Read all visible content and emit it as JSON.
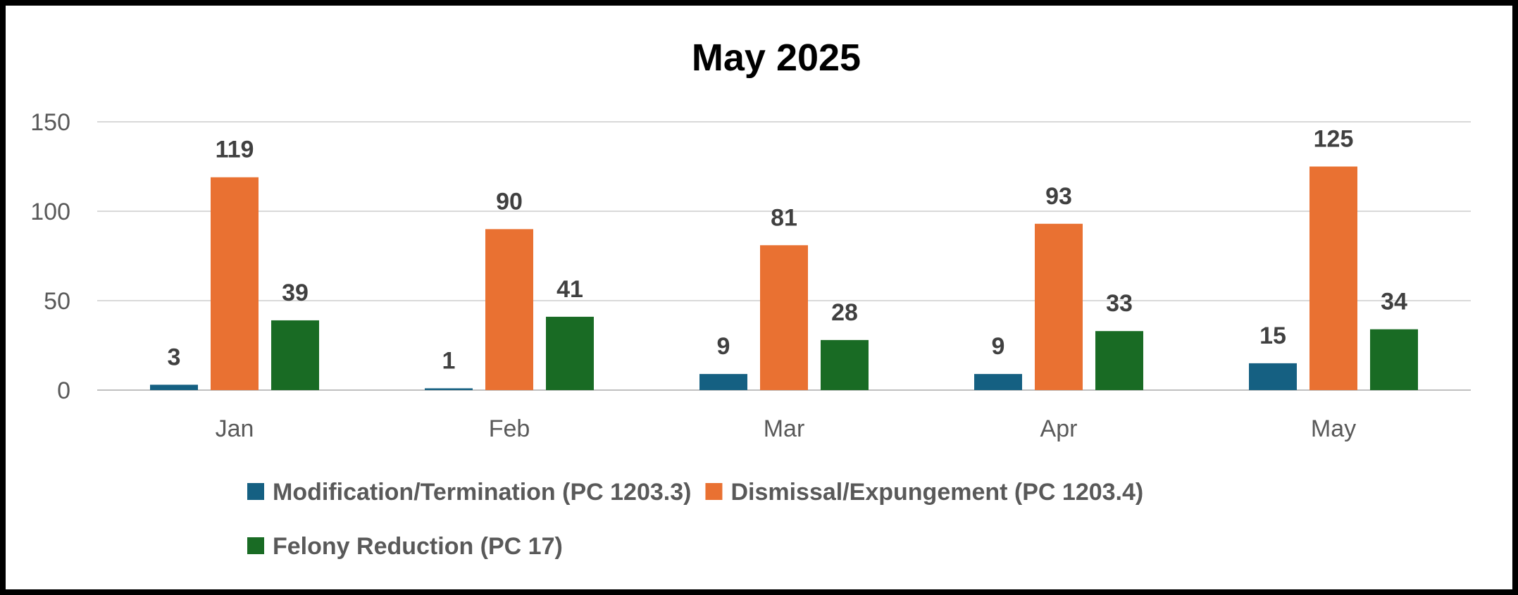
{
  "chart_data": {
    "type": "bar",
    "title": "May 2025",
    "categories": [
      "Jan",
      "Feb",
      "Mar",
      "Apr",
      "May"
    ],
    "series": [
      {
        "name": "Modification/Termination (PC 1203.3)",
        "color": "#156082",
        "values": [
          3,
          1,
          9,
          9,
          15
        ]
      },
      {
        "name": "Dismissal/Expungement (PC 1203.4)",
        "color": "#E97132",
        "values": [
          119,
          90,
          81,
          93,
          125
        ]
      },
      {
        "name": "Felony Reduction (PC 17)",
        "color": "#196B24",
        "values": [
          39,
          41,
          28,
          33,
          34
        ]
      }
    ],
    "ylim": [
      0,
      150
    ],
    "yticks": [
      0,
      50,
      100,
      150
    ],
    "grid": true,
    "data_labels": true,
    "legend": "bottom"
  }
}
